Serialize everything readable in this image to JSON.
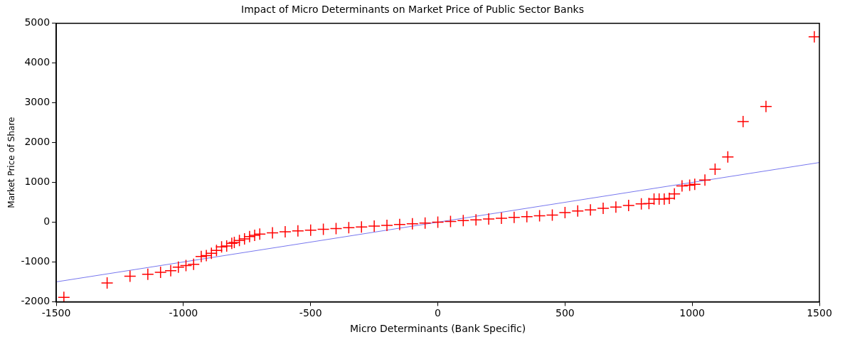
{
  "chart_data": {
    "type": "scatter",
    "title": "Impact of Micro Determinants on Market Price of Public Sector Banks",
    "xlabel": "Micro Determinants (Bank Specific)",
    "ylabel": "Market Price of Share",
    "xlim": [
      -1500,
      1500
    ],
    "xticks": [
      -1500,
      -1000,
      -500,
      0,
      500,
      1000,
      1500
    ],
    "ylim": [
      -2000,
      5000
    ],
    "yticks": [
      -2000,
      -1000,
      0,
      1000,
      2000,
      3000,
      4000,
      5000
    ],
    "grid": false,
    "legend": false,
    "series": [
      {
        "color": "#ff0000",
        "marker": "cross",
        "x": [
          -1470,
          -1300,
          -1210,
          -1140,
          -1090,
          -1050,
          -1020,
          -990,
          -960,
          -930,
          -910,
          -890,
          -870,
          -850,
          -830,
          -810,
          -800,
          -780,
          -760,
          -740,
          -720,
          -700,
          -650,
          -600,
          -550,
          -500,
          -450,
          -400,
          -350,
          -300,
          -250,
          -200,
          -150,
          -100,
          -50,
          0,
          50,
          100,
          150,
          200,
          250,
          300,
          350,
          400,
          450,
          500,
          550,
          600,
          650,
          700,
          750,
          800,
          830,
          850,
          870,
          890,
          910,
          930,
          960,
          990,
          1010,
          1050,
          1090,
          1140,
          1200,
          1290,
          1480
        ],
        "values": [
          -1890,
          -1530,
          -1360,
          -1310,
          -1260,
          -1220,
          -1130,
          -1090,
          -1060,
          -860,
          -840,
          -780,
          -710,
          -620,
          -600,
          -530,
          -510,
          -460,
          -420,
          -360,
          -330,
          -300,
          -270,
          -240,
          -220,
          -200,
          -180,
          -160,
          -140,
          -120,
          -100,
          -80,
          -60,
          -40,
          -20,
          0,
          20,
          40,
          60,
          80,
          100,
          120,
          140,
          160,
          180,
          240,
          280,
          310,
          350,
          380,
          420,
          460,
          470,
          580,
          580,
          580,
          600,
          710,
          910,
          930,
          950,
          1060,
          1330,
          1640,
          2530,
          2910,
          4660
        ]
      },
      {
        "type": "line",
        "color": "#7777ee",
        "marker": "none",
        "x": [
          -1500,
          1500
        ],
        "values": [
          -1500,
          1500
        ]
      }
    ]
  }
}
